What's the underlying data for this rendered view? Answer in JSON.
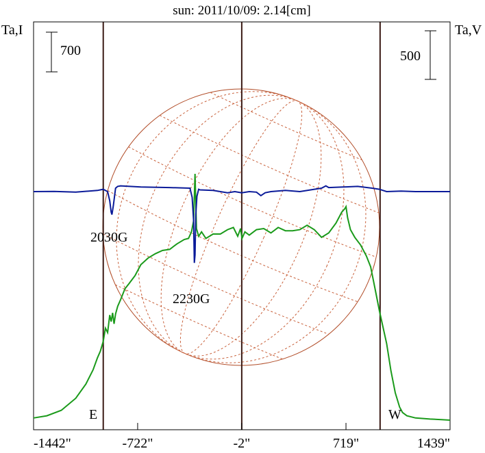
{
  "chart_data": {
    "type": "line",
    "title": "sun: 2011/10/09: 2.14[cm]",
    "ylabel_left": "Ta,I",
    "ylabel_right": "Ta,V",
    "x_ticks": [
      {
        "value": -1442,
        "label": "-1442\""
      },
      {
        "value": -722,
        "label": "-722\""
      },
      {
        "value": -2,
        "label": "-2\""
      },
      {
        "value": 719,
        "label": "719\""
      },
      {
        "value": 1439,
        "label": "1439\""
      }
    ],
    "xlim": [
      -1442,
      1439
    ],
    "scale_bars": [
      {
        "axis": "left",
        "label": "700"
      },
      {
        "axis": "right",
        "label": "500"
      }
    ],
    "limb_markers": [
      {
        "label": "E",
        "x": -960
      },
      {
        "label": "W",
        "x": 955
      }
    ],
    "center_marker_x": -2,
    "sunspot_labels": [
      {
        "label": "2030G",
        "x": -900
      },
      {
        "label": "2230G",
        "x": -322
      }
    ],
    "series": [
      {
        "key": "I",
        "color": "#1a9a1a",
        "x": [
          -1442,
          -1350,
          -1250,
          -1150,
          -1080,
          -1030,
          -1000,
          -980,
          -960,
          -945,
          -930,
          -915,
          -905,
          -895,
          -885,
          -875,
          -860,
          -840,
          -810,
          -780,
          -740,
          -700,
          -650,
          -600,
          -550,
          -500,
          -450,
          -400,
          -370,
          -350,
          -335,
          -325,
          -315,
          -300,
          -280,
          -250,
          -200,
          -150,
          -100,
          -60,
          -30,
          -10,
          0,
          20,
          50,
          100,
          150,
          200,
          250,
          300,
          350,
          400,
          450,
          500,
          550,
          600,
          650,
          690,
          710,
          719,
          730,
          750,
          780,
          820,
          860,
          890,
          920,
          950,
          975,
          1000,
          1030,
          1060,
          1090,
          1110,
          1140,
          1200,
          1300,
          1380,
          1439
        ],
        "values": [
          0.02,
          0.04,
          0.09,
          0.2,
          0.33,
          0.46,
          0.57,
          0.63,
          0.72,
          0.84,
          0.8,
          0.96,
          0.9,
          0.98,
          0.88,
          0.97,
          1.04,
          1.1,
          1.2,
          1.25,
          1.32,
          1.42,
          1.48,
          1.52,
          1.55,
          1.56,
          1.61,
          1.65,
          1.66,
          1.72,
          1.82,
          2.25,
          1.75,
          1.68,
          1.72,
          1.66,
          1.7,
          1.7,
          1.74,
          1.76,
          1.68,
          1.75,
          1.66,
          1.72,
          1.69,
          1.74,
          1.75,
          1.71,
          1.76,
          1.73,
          1.73,
          1.74,
          1.78,
          1.74,
          1.67,
          1.71,
          1.8,
          1.9,
          1.93,
          1.95,
          1.85,
          1.74,
          1.67,
          1.6,
          1.5,
          1.4,
          1.2,
          1.0,
          0.85,
          0.7,
          0.45,
          0.25,
          0.12,
          0.07,
          0.04,
          0.02,
          0.01,
          0.005,
          0.0
        ]
      },
      {
        "key": "V",
        "color": "#0a1a99",
        "x": [
          -1442,
          -1300,
          -1150,
          -1000,
          -960,
          -930,
          -915,
          -905,
          -900,
          -890,
          -875,
          -860,
          -840,
          -700,
          -500,
          -360,
          -345,
          -335,
          -330,
          -325,
          -320,
          -312,
          -300,
          -290,
          -200,
          -100,
          -50,
          -2,
          50,
          100,
          130,
          160,
          200,
          300,
          400,
          500,
          550,
          580,
          600,
          700,
          800,
          900,
          950,
          1000,
          1100,
          1200,
          1300,
          1439
        ],
        "values": [
          0,
          0.002,
          -0.005,
          0.01,
          0.02,
          0.0,
          -0.08,
          -0.18,
          -0.2,
          -0.12,
          0.03,
          0.045,
          0.05,
          0.04,
          0.035,
          0.03,
          -0.05,
          -0.25,
          -0.62,
          -0.55,
          -0.2,
          -0.04,
          0.02,
          0.015,
          0.01,
          -0.01,
          0.0,
          -0.01,
          0.0,
          -0.005,
          -0.035,
          -0.01,
          0.0,
          0.01,
          0.0,
          0.02,
          0.03,
          0.05,
          0.035,
          0.04,
          0.045,
          0.03,
          0.02,
          0.0,
          0.005,
          0.0,
          0.0,
          0.0
        ]
      }
    ]
  }
}
